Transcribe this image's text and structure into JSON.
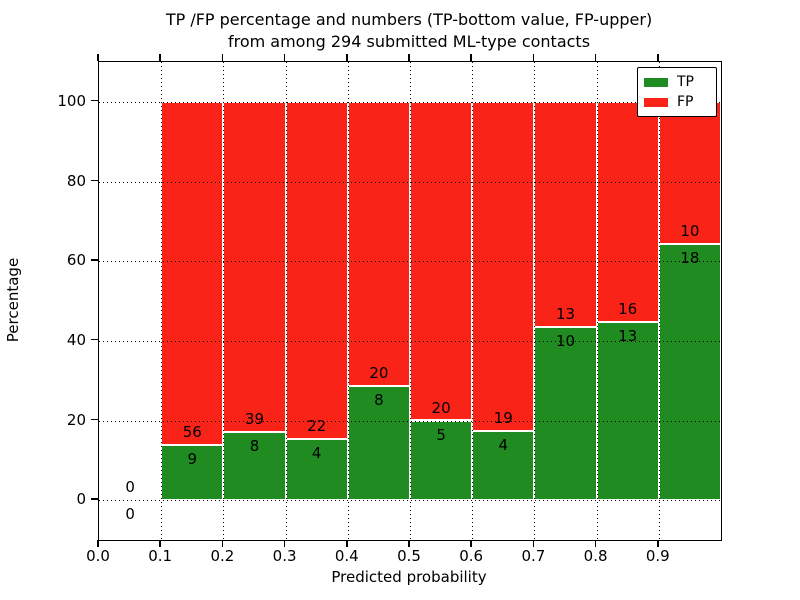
{
  "chart_data": {
    "type": "bar",
    "stacked": true,
    "title_lines": [
      "TP /FP percentage and numbers (TP-bottom value, FP-upper)",
      "from among 294 submitted ML-type contacts"
    ],
    "xlabel": "Predicted probability",
    "ylabel": "Percentage",
    "xlim": [
      0.0,
      1.0
    ],
    "ylim": [
      -10,
      110
    ],
    "grid": true,
    "legend_position": "upper right",
    "total_contacts": 294,
    "bin_width": 0.1,
    "bins": [
      {
        "x_start": 0.0,
        "tp": 0,
        "fp": 0,
        "tp_pct": 0.0
      },
      {
        "x_start": 0.1,
        "tp": 9,
        "fp": 56,
        "tp_pct": 13.85
      },
      {
        "x_start": 0.2,
        "tp": 8,
        "fp": 39,
        "tp_pct": 17.02
      },
      {
        "x_start": 0.3,
        "tp": 4,
        "fp": 22,
        "tp_pct": 15.38
      },
      {
        "x_start": 0.4,
        "tp": 8,
        "fp": 20,
        "tp_pct": 28.57
      },
      {
        "x_start": 0.5,
        "tp": 5,
        "fp": 20,
        "tp_pct": 20.0
      },
      {
        "x_start": 0.6,
        "tp": 4,
        "fp": 19,
        "tp_pct": 17.39
      },
      {
        "x_start": 0.7,
        "tp": 10,
        "fp": 13,
        "tp_pct": 43.48
      },
      {
        "x_start": 0.8,
        "tp": 13,
        "fp": 16,
        "tp_pct": 44.83
      },
      {
        "x_start": 0.9,
        "tp": 18,
        "fp": 10,
        "tp_pct": 64.29
      }
    ],
    "x_tick_labels": [
      "0.0",
      "0.1",
      "0.2",
      "0.3",
      "0.4",
      "0.5",
      "0.6",
      "0.7",
      "0.8",
      "0.9"
    ],
    "x_tick_values": [
      0.0,
      0.1,
      0.2,
      0.3,
      0.4,
      0.5,
      0.6,
      0.7,
      0.8,
      0.9
    ],
    "y_tick_values": [
      0,
      20,
      40,
      60,
      80,
      100
    ],
    "colors": {
      "tp": "#208b20",
      "fp": "#f92318"
    },
    "legend": [
      {
        "label": "TP",
        "series": "tp"
      },
      {
        "label": "FP",
        "series": "fp"
      }
    ]
  }
}
